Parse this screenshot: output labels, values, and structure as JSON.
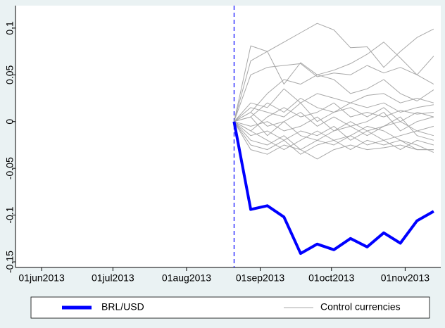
{
  "chart_data": {
    "type": "line",
    "x": [
      "2013-08-21",
      "2013-08-28",
      "2013-09-04",
      "2013-09-11",
      "2013-09-18",
      "2013-09-25",
      "2013-10-02",
      "2013-10-09",
      "2013-10-16",
      "2013-10-23",
      "2013-10-30",
      "2013-11-06",
      "2013-11-13"
    ],
    "xlim": [
      "2013-05-21",
      "2013-11-16"
    ],
    "xticks": [
      {
        "value": "2013-06-01",
        "label": "01jun2013"
      },
      {
        "value": "2013-07-01",
        "label": "01jul2013"
      },
      {
        "value": "2013-08-01",
        "label": "01aug2013"
      },
      {
        "value": "2013-09-01",
        "label": "01sep2013"
      },
      {
        "value": "2013-10-01",
        "label": "01oct2013"
      },
      {
        "value": "2013-11-01",
        "label": "01nov2013"
      }
    ],
    "ylim": [
      -0.156,
      0.124
    ],
    "yticks": [
      -0.15,
      -0.1,
      -0.05,
      0,
      0.05,
      0.1
    ],
    "vline": "2013-08-21",
    "grid": false,
    "legend": "bottom",
    "series": [
      {
        "name": "BRL/USD",
        "color": "#0000ff",
        "values": [
          0,
          -0.094,
          -0.09,
          -0.102,
          -0.141,
          -0.131,
          -0.137,
          -0.125,
          -0.134,
          -0.119,
          -0.13,
          -0.106,
          -0.096
        ]
      },
      {
        "name": "Control currencies",
        "color": "#a8a8a8",
        "lines": [
          [
            0,
            0.065,
            0.075,
            0.085,
            0.095,
            0.105,
            0.098,
            0.079,
            0.08,
            0.058,
            0.075,
            0.09,
            0.099
          ],
          [
            0,
            0.081,
            0.075,
            0.04,
            0.063,
            0.05,
            0.055,
            0.062,
            0.072,
            0.085,
            0.068,
            0.05,
            0.04
          ],
          [
            0,
            0.05,
            0.058,
            0.06,
            0.062,
            0.048,
            0.052,
            0.05,
            0.06,
            0.052,
            0.058,
            0.05,
            0.07
          ],
          [
            0,
            0.01,
            0.03,
            0.045,
            0.04,
            0.05,
            0.045,
            0.03,
            0.035,
            0.045,
            0.03,
            0.022,
            0.034
          ],
          [
            0,
            0.02,
            0.015,
            0.035,
            0.02,
            0.03,
            0.025,
            0.02,
            0.028,
            0.03,
            0.02,
            0.025,
            0.02
          ],
          [
            0,
            0.005,
            0.02,
            0.01,
            0.025,
            0.015,
            0.01,
            0.02,
            0.015,
            0.02,
            0.01,
            0.015,
            0.018
          ],
          [
            0,
            -0.01,
            0.005,
            0.015,
            0.005,
            0.01,
            0.02,
            0.005,
            0.01,
            0.005,
            0.012,
            0.008,
            0.01
          ],
          [
            0,
            0.01,
            -0.005,
            0,
            0.01,
            -0.005,
            0.005,
            -0.005,
            0,
            0.01,
            -0.01,
            0,
            0.005
          ],
          [
            0,
            -0.005,
            0,
            -0.01,
            -0.005,
            0.005,
            -0.01,
            -0.005,
            -0.015,
            -0.005,
            0,
            -0.01,
            -0.005
          ],
          [
            0,
            -0.015,
            -0.01,
            -0.02,
            -0.01,
            -0.015,
            -0.005,
            -0.02,
            -0.01,
            -0.02,
            -0.015,
            -0.01,
            -0.015
          ],
          [
            0,
            -0.02,
            -0.025,
            -0.015,
            -0.03,
            -0.02,
            -0.025,
            -0.015,
            -0.025,
            -0.02,
            -0.03,
            -0.02,
            -0.025
          ],
          [
            0,
            -0.025,
            -0.03,
            -0.02,
            -0.035,
            -0.025,
            -0.02,
            -0.03,
            -0.02,
            -0.025,
            -0.02,
            -0.03,
            -0.03
          ],
          [
            0,
            -0.03,
            -0.035,
            -0.025,
            -0.03,
            -0.04,
            -0.03,
            -0.025,
            -0.03,
            -0.028,
            -0.025,
            -0.03,
            -0.03
          ],
          [
            0,
            -0.01,
            -0.02,
            -0.03,
            -0.02,
            -0.01,
            -0.02,
            -0.015,
            -0.005,
            -0.01,
            -0.02,
            -0.025,
            -0.033
          ],
          [
            0,
            0.005,
            -0.015,
            0,
            -0.015,
            -0.02,
            -0.01,
            0,
            -0.01,
            -0.005,
            0.005,
            -0.015,
            -0.02
          ],
          [
            0,
            0.015,
            0.01,
            0.005,
            0.02,
            0,
            0.01,
            0.015,
            0.005,
            0.015,
            0,
            0.01,
            0.005
          ]
        ]
      }
    ]
  }
}
